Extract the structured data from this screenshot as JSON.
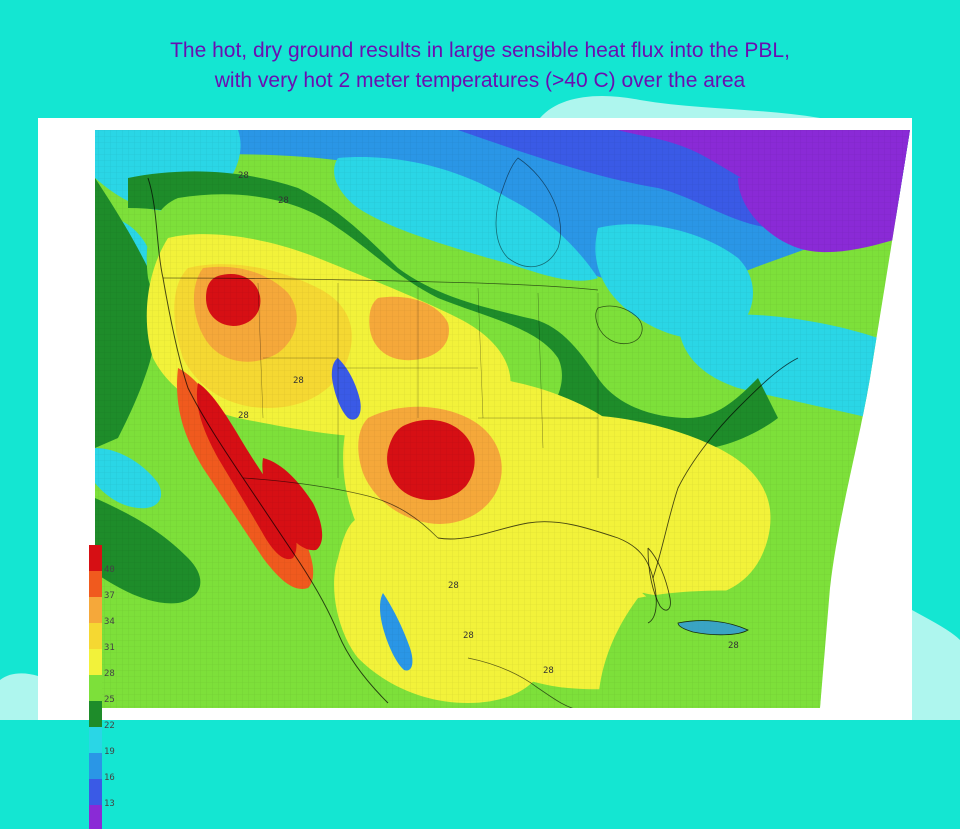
{
  "slide": {
    "title_line1": "The hot, dry ground results in large sensible heat flux into the PBL,",
    "title_line2": "with very hot 2 meter temperatures (>40 C) over the area",
    "background_color": "#14e6d2"
  },
  "map": {
    "field": "2 meter temperature",
    "units": "C",
    "contour_labels": [
      "28",
      "28",
      "28",
      "28",
      "28",
      "28",
      "28",
      "28"
    ]
  },
  "legend": {
    "colors": [
      "#d60f14",
      "#f05a1e",
      "#f5a83a",
      "#f5d832",
      "#f2f23a",
      "#7de03a",
      "#1e8c2a",
      "#2ad6e6",
      "#2a96e6",
      "#3a5ae6",
      "#8a2ad6",
      "#6a0a9a"
    ],
    "labels": [
      "40",
      "37",
      "34",
      "31",
      "28",
      "25",
      "22",
      "19",
      "16",
      "13"
    ]
  }
}
